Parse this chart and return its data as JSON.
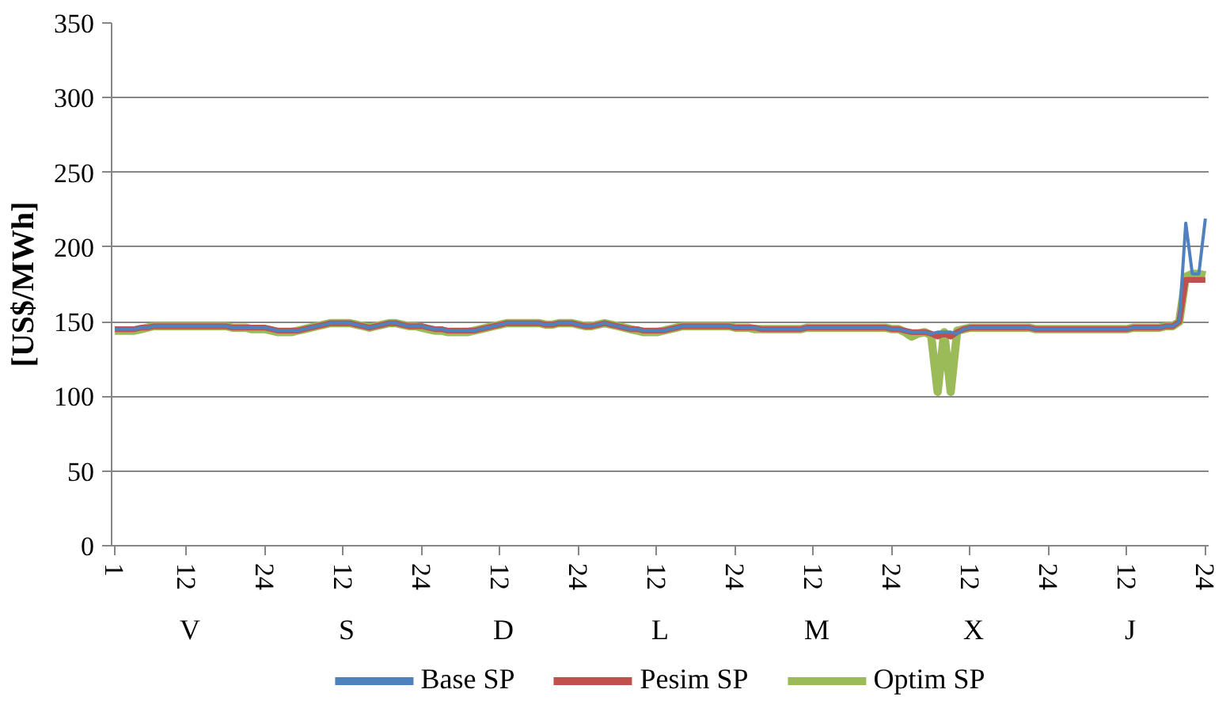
{
  "chart_data": {
    "type": "line",
    "ylabel": "[US$/MWh]",
    "ylim": [
      0,
      350
    ],
    "yticks": [
      0,
      50,
      100,
      150,
      200,
      250,
      300,
      350
    ],
    "categories": [
      "1",
      null,
      null,
      null,
      null,
      null,
      null,
      null,
      null,
      null,
      null,
      "12",
      null,
      null,
      null,
      null,
      null,
      null,
      null,
      null,
      null,
      null,
      null,
      "24",
      null,
      null,
      null,
      null,
      null,
      null,
      null,
      null,
      null,
      null,
      null,
      "12",
      null,
      null,
      null,
      null,
      null,
      null,
      null,
      null,
      null,
      null,
      null,
      "24",
      null,
      null,
      null,
      null,
      null,
      null,
      null,
      null,
      null,
      null,
      null,
      "12",
      null,
      null,
      null,
      null,
      null,
      null,
      null,
      null,
      null,
      null,
      null,
      "24",
      null,
      null,
      null,
      null,
      null,
      null,
      null,
      null,
      null,
      null,
      null,
      "12",
      null,
      null,
      null,
      null,
      null,
      null,
      null,
      null,
      null,
      null,
      null,
      "24",
      null,
      null,
      null,
      null,
      null,
      null,
      null,
      null,
      null,
      null,
      null,
      "12",
      null,
      null,
      null,
      null,
      null,
      null,
      null,
      null,
      null,
      null,
      null,
      "24",
      null,
      null,
      null,
      null,
      null,
      null,
      null,
      null,
      null,
      null,
      null,
      "12",
      null,
      null,
      null,
      null,
      null,
      null,
      null,
      null,
      null,
      null,
      null,
      "24",
      null,
      null,
      null,
      null,
      null,
      null,
      null,
      null,
      null,
      null,
      null,
      "12",
      null,
      null,
      null,
      null,
      null,
      null,
      null,
      null,
      null,
      null,
      null,
      "24"
    ],
    "annotations": [
      "V",
      "S",
      "D",
      "L",
      "M",
      "X",
      "J"
    ],
    "grid": "y",
    "legend": "bottom",
    "line_style": "solid",
    "series": [
      {
        "name": "Base SP",
        "color": "#4f81bd",
        "values": [
          145,
          145,
          145,
          145,
          146,
          146,
          147,
          147,
          147,
          147,
          147,
          147,
          147,
          147,
          147,
          147,
          147,
          147,
          146,
          146,
          146,
          146,
          146,
          146,
          145,
          144,
          144,
          144,
          144,
          145,
          146,
          147,
          148,
          149,
          149,
          149,
          149,
          148,
          147,
          146,
          147,
          148,
          149,
          149,
          148,
          147,
          147,
          147,
          146,
          145,
          145,
          144,
          144,
          144,
          144,
          144,
          145,
          146,
          147,
          148,
          149,
          149,
          149,
          149,
          149,
          149,
          148,
          148,
          149,
          149,
          149,
          148,
          147,
          147,
          148,
          149,
          148,
          147,
          146,
          145,
          145,
          144,
          144,
          144,
          144,
          145,
          146,
          147,
          147,
          147,
          147,
          147,
          147,
          147,
          147,
          146,
          146,
          146,
          146,
          145,
          145,
          145,
          145,
          145,
          145,
          145,
          146,
          146,
          146,
          146,
          146,
          146,
          146,
          146,
          146,
          146,
          146,
          146,
          146,
          145,
          145,
          144,
          143,
          143,
          143,
          142,
          143,
          143,
          143,
          142,
          145,
          146,
          146,
          146,
          146,
          146,
          146,
          146,
          146,
          146,
          146,
          145,
          145,
          145,
          145,
          145,
          145,
          145,
          145,
          145,
          145,
          145,
          145,
          145,
          145,
          145,
          146,
          146,
          146,
          146,
          146,
          147,
          147,
          150,
          216,
          182,
          182,
          219
        ]
      },
      {
        "name": "Pesim SP",
        "color": "#c0504d",
        "values": [
          145,
          145,
          145,
          145,
          146,
          146,
          147,
          147,
          147,
          147,
          147,
          147,
          147,
          147,
          147,
          147,
          147,
          147,
          146,
          146,
          146,
          146,
          146,
          146,
          145,
          144,
          144,
          144,
          144,
          145,
          146,
          147,
          148,
          149,
          149,
          149,
          149,
          148,
          147,
          146,
          147,
          148,
          149,
          149,
          148,
          147,
          147,
          147,
          146,
          145,
          145,
          144,
          144,
          144,
          144,
          144,
          145,
          146,
          147,
          148,
          149,
          149,
          149,
          149,
          149,
          149,
          148,
          148,
          149,
          149,
          149,
          148,
          147,
          147,
          148,
          149,
          148,
          147,
          146,
          145,
          145,
          144,
          144,
          144,
          144,
          145,
          146,
          147,
          147,
          147,
          147,
          147,
          147,
          147,
          147,
          146,
          146,
          146,
          146,
          145,
          145,
          145,
          145,
          145,
          145,
          145,
          146,
          146,
          146,
          146,
          146,
          146,
          146,
          146,
          146,
          146,
          146,
          146,
          146,
          145,
          145,
          144,
          143,
          143,
          143,
          142,
          140,
          142,
          140,
          143,
          145,
          146,
          146,
          146,
          146,
          146,
          146,
          146,
          146,
          146,
          146,
          145,
          145,
          145,
          145,
          145,
          145,
          145,
          145,
          145,
          145,
          145,
          145,
          145,
          145,
          145,
          146,
          146,
          146,
          146,
          146,
          147,
          147,
          150,
          178,
          178,
          178,
          178
        ]
      },
      {
        "name": "Optim SP",
        "color": "#9bbb59",
        "values": [
          144,
          144,
          144,
          144,
          145,
          146,
          147,
          147,
          147,
          147,
          147,
          147,
          147,
          147,
          147,
          147,
          147,
          147,
          146,
          146,
          146,
          145,
          145,
          145,
          144,
          143,
          143,
          143,
          144,
          145,
          146,
          147,
          148,
          149,
          149,
          149,
          149,
          148,
          147,
          146,
          147,
          148,
          149,
          149,
          148,
          147,
          147,
          146,
          145,
          144,
          144,
          143,
          143,
          143,
          143,
          144,
          145,
          146,
          147,
          148,
          149,
          149,
          149,
          149,
          149,
          149,
          148,
          148,
          149,
          149,
          149,
          148,
          147,
          147,
          148,
          149,
          148,
          147,
          146,
          145,
          144,
          143,
          143,
          143,
          144,
          145,
          146,
          147,
          147,
          147,
          147,
          147,
          147,
          147,
          147,
          146,
          146,
          146,
          145,
          145,
          145,
          145,
          145,
          145,
          145,
          145,
          146,
          146,
          146,
          146,
          146,
          146,
          146,
          146,
          146,
          146,
          146,
          146,
          146,
          145,
          145,
          143,
          140,
          142,
          143,
          141,
          103,
          143,
          103,
          144,
          145,
          146,
          146,
          146,
          146,
          146,
          146,
          146,
          146,
          146,
          146,
          145,
          145,
          145,
          145,
          145,
          145,
          145,
          145,
          145,
          145,
          145,
          145,
          145,
          145,
          145,
          146,
          146,
          146,
          146,
          146,
          147,
          147,
          150,
          180,
          182,
          182,
          181
        ]
      }
    ]
  }
}
